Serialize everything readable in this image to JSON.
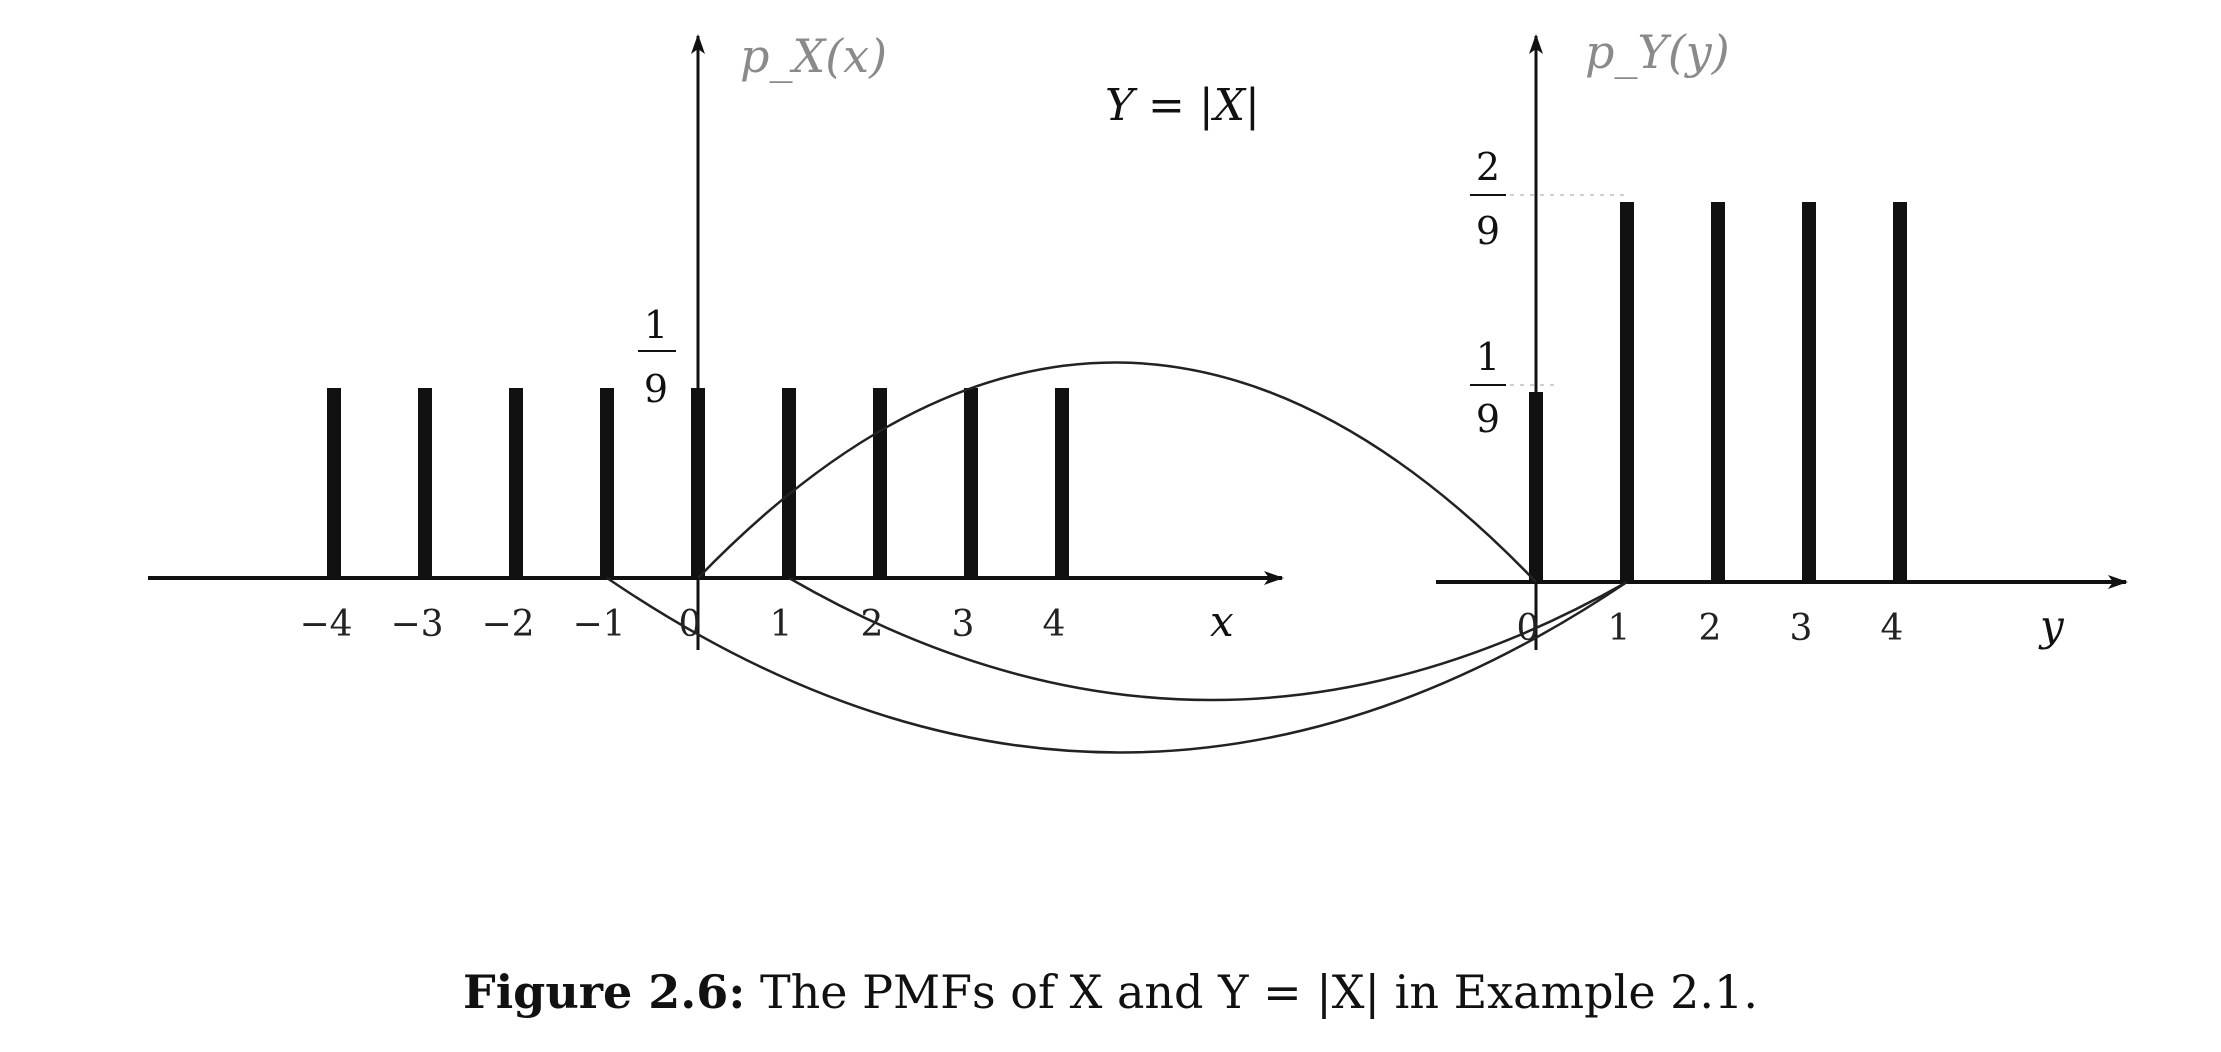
{
  "chart_data": [
    {
      "type": "bar",
      "name": "pmf-x",
      "x": [
        -4,
        -3,
        -2,
        -1,
        0,
        1,
        2,
        3,
        4
      ],
      "tick_labels": [
        "−4",
        "−3",
        "−2",
        "−1",
        "0",
        "1",
        "2",
        "3",
        "4"
      ],
      "values": [
        0.1111,
        0.1111,
        0.1111,
        0.1111,
        0.1111,
        0.1111,
        0.1111,
        0.1111,
        0.1111
      ],
      "ylabel": "p_X(x)",
      "xlabel": "x",
      "y_tick_labels": [
        {
          "value": 0.1111,
          "numerator": "1",
          "denominator": "9"
        }
      ],
      "xlim": [
        -6.0,
        6.3
      ],
      "ylim": [
        0,
        0.3
      ]
    },
    {
      "type": "bar",
      "name": "pmf-y",
      "x": [
        0,
        1,
        2,
        3,
        4
      ],
      "tick_labels": [
        "0",
        "1",
        "2",
        "3",
        "4"
      ],
      "values": [
        0.1111,
        0.2222,
        0.2222,
        0.2222,
        0.2222
      ],
      "ylabel": "p_Y(y)",
      "xlabel": "y",
      "y_tick_labels": [
        {
          "value": 0.2222,
          "numerator": "2",
          "denominator": "9"
        },
        {
          "value": 0.1111,
          "numerator": "1",
          "denominator": "9"
        }
      ],
      "xlim": [
        -1.1,
        6.6
      ],
      "ylim": [
        0,
        0.3
      ]
    }
  ],
  "mapping_label": "Y = |X|",
  "mappings": [
    [
      0,
      0
    ],
    [
      -1,
      1
    ],
    [
      1,
      1
    ]
  ],
  "caption": {
    "label": "Figure 2.6:",
    "text": "The PMFs of X and Y = |X| in Example 2.1."
  }
}
